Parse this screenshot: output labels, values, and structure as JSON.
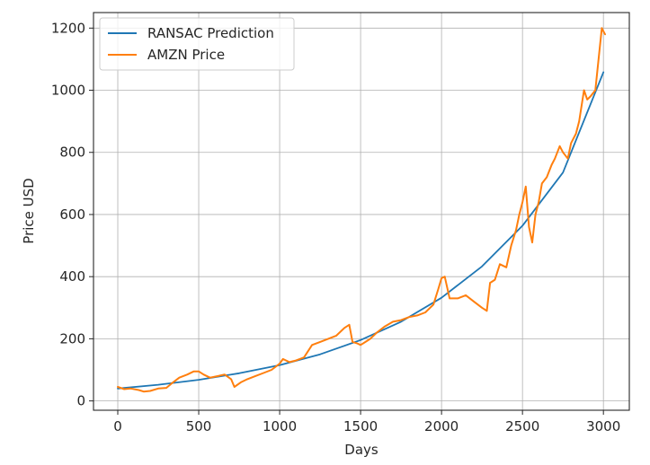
{
  "chart_data": {
    "type": "line",
    "xlabel": "Days",
    "ylabel": "Price USD",
    "xlim": [
      -150,
      3160
    ],
    "ylim": [
      -30,
      1250
    ],
    "xticks": [
      0,
      500,
      1000,
      1500,
      2000,
      2500,
      3000
    ],
    "yticks": [
      0,
      200,
      400,
      600,
      800,
      1000,
      1200
    ],
    "grid": true,
    "legend_position": "upper-left",
    "series": [
      {
        "name": "RANSAC Prediction",
        "color": "#1f77b4",
        "model": "exponential",
        "x": [
          0,
          250,
          500,
          750,
          1000,
          1250,
          1500,
          1750,
          2000,
          2250,
          2500,
          2750,
          3000
        ],
        "y": [
          40,
          52,
          68,
          89,
          115,
          150,
          196,
          255,
          332,
          433,
          564,
          735,
          1058
        ]
      },
      {
        "name": "AMZN Price",
        "color": "#ff7f0e",
        "x": [
          0,
          40,
          80,
          130,
          160,
          200,
          250,
          300,
          330,
          380,
          430,
          470,
          500,
          530,
          570,
          620,
          660,
          700,
          720,
          760,
          800,
          850,
          900,
          950,
          1000,
          1020,
          1060,
          1100,
          1150,
          1200,
          1250,
          1300,
          1350,
          1400,
          1430,
          1450,
          1480,
          1500,
          1530,
          1560,
          1600,
          1650,
          1700,
          1750,
          1800,
          1850,
          1900,
          1950,
          1980,
          2000,
          2020,
          2050,
          2100,
          2150,
          2200,
          2250,
          2280,
          2300,
          2330,
          2360,
          2400,
          2430,
          2460,
          2480,
          2500,
          2520,
          2540,
          2560,
          2580,
          2600,
          2620,
          2650,
          2680,
          2700,
          2730,
          2750,
          2780,
          2800,
          2830,
          2850,
          2880,
          2900,
          2920,
          2950,
          2970,
          2990,
          3000,
          3010
        ],
        "y": [
          45,
          38,
          40,
          35,
          30,
          32,
          40,
          42,
          55,
          75,
          85,
          95,
          95,
          85,
          75,
          80,
          85,
          70,
          45,
          60,
          70,
          80,
          90,
          100,
          120,
          135,
          125,
          130,
          140,
          180,
          190,
          200,
          210,
          235,
          245,
          190,
          185,
          180,
          190,
          200,
          220,
          240,
          255,
          260,
          270,
          275,
          285,
          310,
          360,
          395,
          400,
          330,
          330,
          340,
          320,
          300,
          290,
          380,
          390,
          440,
          430,
          500,
          550,
          600,
          640,
          690,
          560,
          510,
          600,
          640,
          700,
          720,
          760,
          780,
          820,
          800,
          780,
          830,
          860,
          900,
          1000,
          970,
          980,
          1000,
          1100,
          1200,
          1190,
          1180
        ]
      }
    ]
  }
}
